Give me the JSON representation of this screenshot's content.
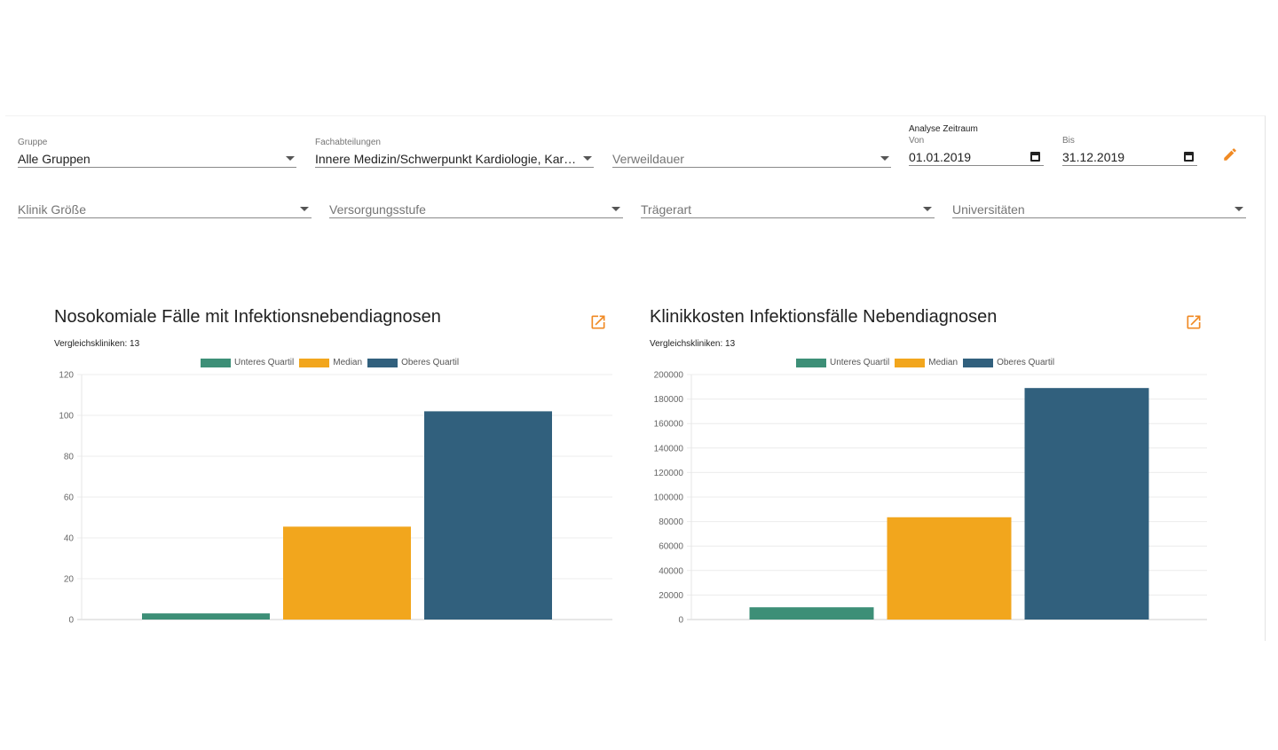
{
  "filters": {
    "gruppe": {
      "label": "Gruppe",
      "value": "Alle Gruppen"
    },
    "fachabteilungen": {
      "label": "Fachabteilungen",
      "value": "Innere Medizin/Schwerpunkt Kardiologie, Kardiologie"
    },
    "verweildauer": {
      "placeholder": "Verweildauer"
    },
    "analyse_zeitraum": "Analyse Zeitraum",
    "von": {
      "label": "Von",
      "value": "01.01.2019"
    },
    "bis": {
      "label": "Bis",
      "value": "31.12.2019"
    },
    "klinik_groesse": {
      "placeholder": "Klinik Größe"
    },
    "versorgungsstufe": {
      "placeholder": "Versorgungsstufe"
    },
    "traegerart": {
      "placeholder": "Trägerart"
    },
    "universitaeten": {
      "placeholder": "Universitäten"
    }
  },
  "colors": {
    "accent": "#f08a24",
    "unteres": "#3d8f77",
    "median": "#f2a61d",
    "oberes": "#31607d"
  },
  "icons": {
    "edit": "pencil-icon",
    "open": "open-in-new-icon",
    "dropdown": "chevron-down-icon",
    "calendar": "calendar-icon"
  },
  "chart_data": [
    {
      "type": "bar",
      "title": "Nosokomiale Fälle mit Infektionsnebendiagnosen",
      "subtitle": "Vergleichskliniken: 13",
      "legend": [
        "Unteres Quartil",
        "Median",
        "Oberes Quartil"
      ],
      "legend_position": "top",
      "values": [
        3,
        45.5,
        102
      ],
      "ylim": [
        0,
        120
      ],
      "yticks": [
        0,
        20,
        40,
        60,
        80,
        100,
        120
      ],
      "grid": true
    },
    {
      "type": "bar",
      "title": "Klinikkosten Infektionsfälle Nebendiagnosen",
      "subtitle": "Vergleichskliniken: 13",
      "legend": [
        "Unteres Quartil",
        "Median",
        "Oberes Quartil"
      ],
      "legend_position": "top",
      "values": [
        10000,
        83500,
        189000
      ],
      "ylim": [
        0,
        200000
      ],
      "yticks": [
        0,
        20000,
        40000,
        60000,
        80000,
        100000,
        120000,
        140000,
        160000,
        180000,
        200000
      ],
      "grid": true
    }
  ]
}
